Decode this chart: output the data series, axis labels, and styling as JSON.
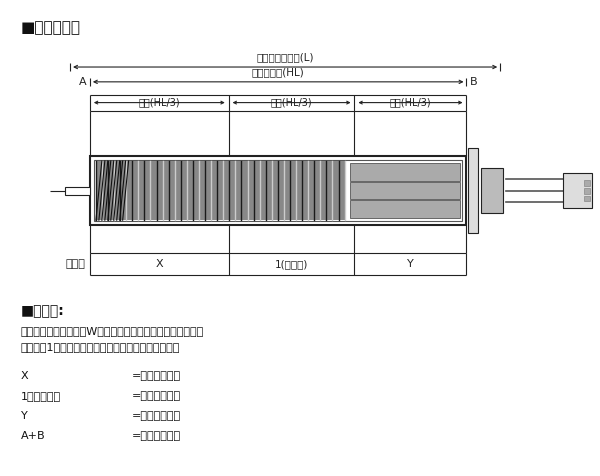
{
  "title": "■基本结构图",
  "bg_color": "#ffffff",
  "fig_width": 6.0,
  "fig_height": 4.76,
  "section_title": "■功率比:",
  "desc_line1": "是指加热器的总功率（W）分配给各部分的比率。以中部功率",
  "desc_line2": "为基准值1，前部和根部可按照基准的倍率进行指定。",
  "legend_items": [
    [
      "X",
      "=前端的功率比"
    ],
    [
      "1（基准值）",
      "=中部的功率比"
    ],
    [
      "Y",
      "=根部的功率比"
    ],
    [
      "A+B",
      "=非发热部长度"
    ]
  ],
  "label_main_length": "加热器主体长度(L)",
  "label_heat_length": "发热部长度(HL)",
  "label_front": "前端(HL/3)",
  "label_middle": "中部(HL/3)",
  "label_root": "根部(HL/3)",
  "label_power_ratio": "功率比",
  "label_A": "A",
  "label_B": "B",
  "label_X": "X",
  "label_1base": "1(基准值)",
  "label_Y": "Y",
  "color_line": "#222222",
  "color_dark": "#444444",
  "color_gray": "#999999",
  "color_light": "#cccccc",
  "lw_thin": 0.8,
  "lw_thick": 1.5
}
